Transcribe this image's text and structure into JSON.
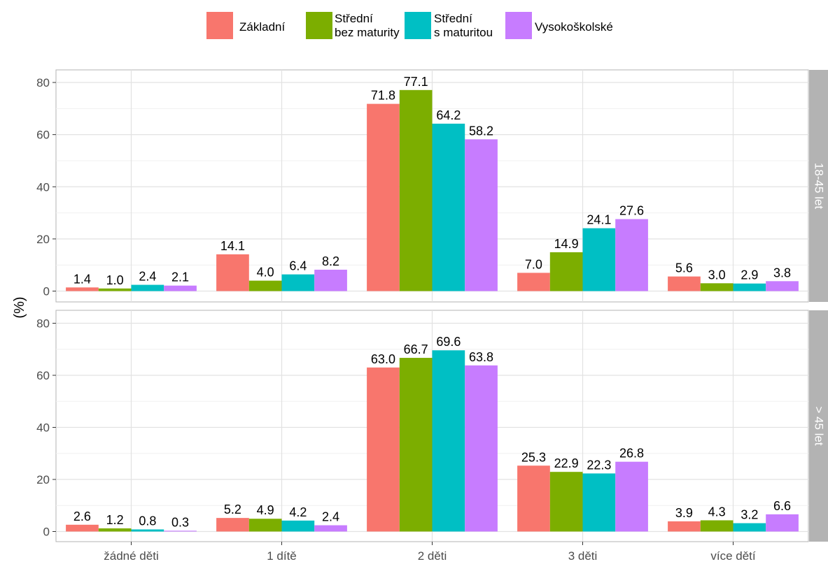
{
  "chart_data": {
    "type": "bar",
    "ylabel": "(%)",
    "categories": [
      "žádné děti",
      "1 dítě",
      "2 děti",
      "3 děti",
      "více dětí"
    ],
    "legend": {
      "position": "top",
      "entries": [
        {
          "label_lines": [
            "Základní"
          ],
          "color": "#F8766D"
        },
        {
          "label_lines": [
            "Střední",
            "bez maturity"
          ],
          "color": "#7CAE00"
        },
        {
          "label_lines": [
            "Střední",
            "s maturitou"
          ],
          "color": "#00BFC4"
        },
        {
          "label_lines": [
            "Vysokoškolské"
          ],
          "color": "#C77CFF"
        }
      ]
    },
    "ylim": [
      0,
      80
    ],
    "yticks": [
      0,
      20,
      40,
      60,
      80
    ],
    "grid": true,
    "panels": [
      {
        "strip": "18-45 let",
        "series": [
          {
            "name": "Základní",
            "values": [
              1.4,
              14.1,
              71.8,
              7.0,
              5.6
            ],
            "labels": [
              "1.4",
              "14.1",
              "71.8",
              "7.0",
              "5.6"
            ]
          },
          {
            "name": "Střední bez maturity",
            "values": [
              1.0,
              4.0,
              77.1,
              14.9,
              3.0
            ],
            "labels": [
              "1.0",
              "4.0",
              "77.1",
              "14.9",
              "3.0"
            ]
          },
          {
            "name": "Střední s maturitou",
            "values": [
              2.4,
              6.4,
              64.2,
              24.1,
              2.9
            ],
            "labels": [
              "2.4",
              "6.4",
              "64.2",
              "24.1",
              "2.9"
            ]
          },
          {
            "name": "Vysokoškolské",
            "values": [
              2.1,
              8.2,
              58.2,
              27.6,
              3.8
            ],
            "labels": [
              "2.1",
              "8.2",
              "58.2",
              "27.6",
              "3.8"
            ]
          }
        ]
      },
      {
        "strip": "> 45 let",
        "series": [
          {
            "name": "Základní",
            "values": [
              2.6,
              5.2,
              63.0,
              25.3,
              3.9
            ],
            "labels": [
              "2.6",
              "5.2",
              "63.0",
              "25.3",
              "3.9"
            ]
          },
          {
            "name": "Střední bez maturity",
            "values": [
              1.2,
              4.9,
              66.7,
              22.9,
              4.3
            ],
            "labels": [
              "1.2",
              "4.9",
              "66.7",
              "22.9",
              "4.3"
            ]
          },
          {
            "name": "Střední s maturitou",
            "values": [
              0.8,
              4.2,
              69.6,
              22.3,
              3.2
            ],
            "labels": [
              "0.8",
              "4.2",
              "69.6",
              "22.3",
              "3.2"
            ]
          },
          {
            "name": "Vysokoškolské",
            "values": [
              0.3,
              2.4,
              63.8,
              26.8,
              6.6
            ],
            "labels": [
              "0.3",
              "2.4",
              "63.8",
              "26.8",
              "6.6"
            ]
          }
        ]
      }
    ]
  }
}
